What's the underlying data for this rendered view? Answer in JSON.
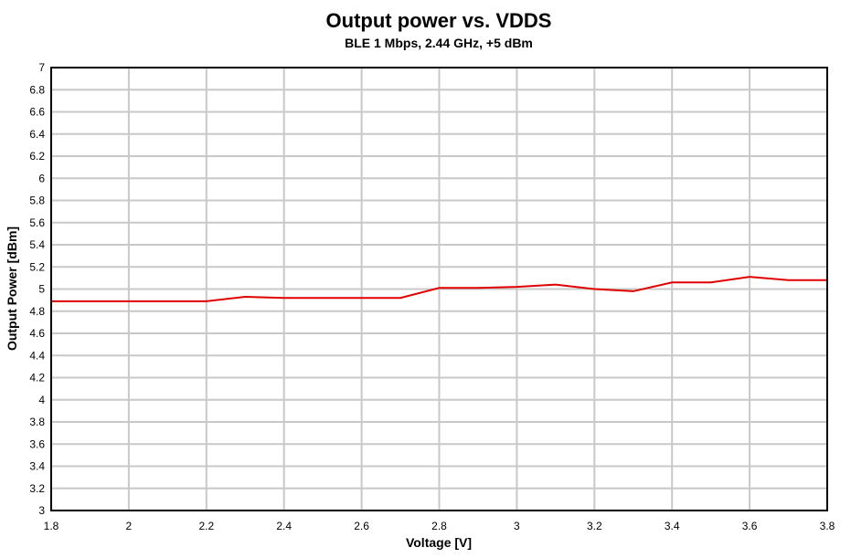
{
  "chart_data": {
    "type": "line",
    "title": "Output power vs. VDDS",
    "subtitle": "BLE 1 Mbps, 2.44 GHz, +5 dBm",
    "xlabel": "Voltage [V]",
    "ylabel": "Output Power [dBm]",
    "xlim": [
      1.8,
      3.8
    ],
    "ylim": [
      3,
      7
    ],
    "xticks": [
      1.8,
      2,
      2.2,
      2.4,
      2.6,
      2.8,
      3,
      3.2,
      3.4,
      3.6,
      3.8
    ],
    "xtick_labels": [
      "1.8",
      "2",
      "2.2",
      "2.4",
      "2.6",
      "2.8",
      "3",
      "3.2",
      "3.4",
      "3.6",
      "3.8"
    ],
    "yticks": [
      3,
      3.2,
      3.4,
      3.6,
      3.8,
      4,
      4.2,
      4.4,
      4.6,
      4.8,
      5,
      5.2,
      5.4,
      5.6,
      5.8,
      6,
      6.2,
      6.4,
      6.6,
      6.8,
      7
    ],
    "ytick_labels": [
      "3",
      "3.2",
      "3.4",
      "3.6",
      "3.8",
      "4",
      "4.2",
      "4.4",
      "4.6",
      "4.8",
      "5",
      "5.2",
      "5.4",
      "5.6",
      "5.8",
      "6",
      "6.2",
      "6.4",
      "6.6",
      "6.8",
      "7"
    ],
    "grid": true,
    "series": [
      {
        "color": "#e00000",
        "x": [
          1.8,
          1.9,
          2.0,
          2.1,
          2.2,
          2.3,
          2.4,
          2.5,
          2.6,
          2.7,
          2.8,
          2.9,
          3.0,
          3.1,
          3.2,
          3.3,
          3.4,
          3.5,
          3.6,
          3.7,
          3.8
        ],
        "y": [
          4.89,
          4.89,
          4.89,
          4.89,
          4.89,
          4.93,
          4.92,
          4.92,
          4.92,
          4.92,
          5.01,
          5.01,
          5.02,
          5.04,
          5.0,
          4.98,
          5.06,
          5.06,
          5.11,
          5.08,
          5.08
        ]
      }
    ]
  }
}
